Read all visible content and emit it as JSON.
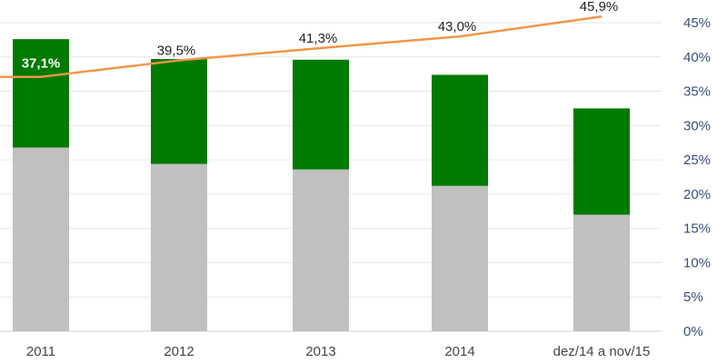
{
  "chart_data": {
    "type": "bar",
    "stacked": true,
    "categories": [
      "2011",
      "2012",
      "2013",
      "2014",
      "dez/14 a nov/15"
    ],
    "series": [
      {
        "name": "",
        "kind": "bar",
        "color": "#c0c0c0",
        "values": [
          26.8,
          24.4,
          23.6,
          21.2,
          17.0
        ]
      },
      {
        "name": "",
        "kind": "bar",
        "color": "#007a00",
        "values": [
          15.8,
          15.3,
          16.0,
          16.2,
          15.5
        ]
      },
      {
        "name": "",
        "kind": "line",
        "color": "#f0964a",
        "values": [
          37.1,
          39.5,
          41.3,
          43.0,
          45.9
        ],
        "labels": [
          "37,1%",
          "39,5%",
          "41,3%",
          "43,0%",
          "45,9%"
        ]
      }
    ],
    "y_axis": {
      "position": "right",
      "range": [
        0,
        45
      ],
      "ticks": [
        0,
        5,
        10,
        15,
        20,
        25,
        30,
        35,
        40,
        45
      ],
      "tick_labels": [
        "0%",
        "5%",
        "10%",
        "15%",
        "20%",
        "25%",
        "30%",
        "35%",
        "40%",
        "45%"
      ]
    },
    "grid": true,
    "title": "",
    "xlabel": "",
    "ylabel": ""
  }
}
